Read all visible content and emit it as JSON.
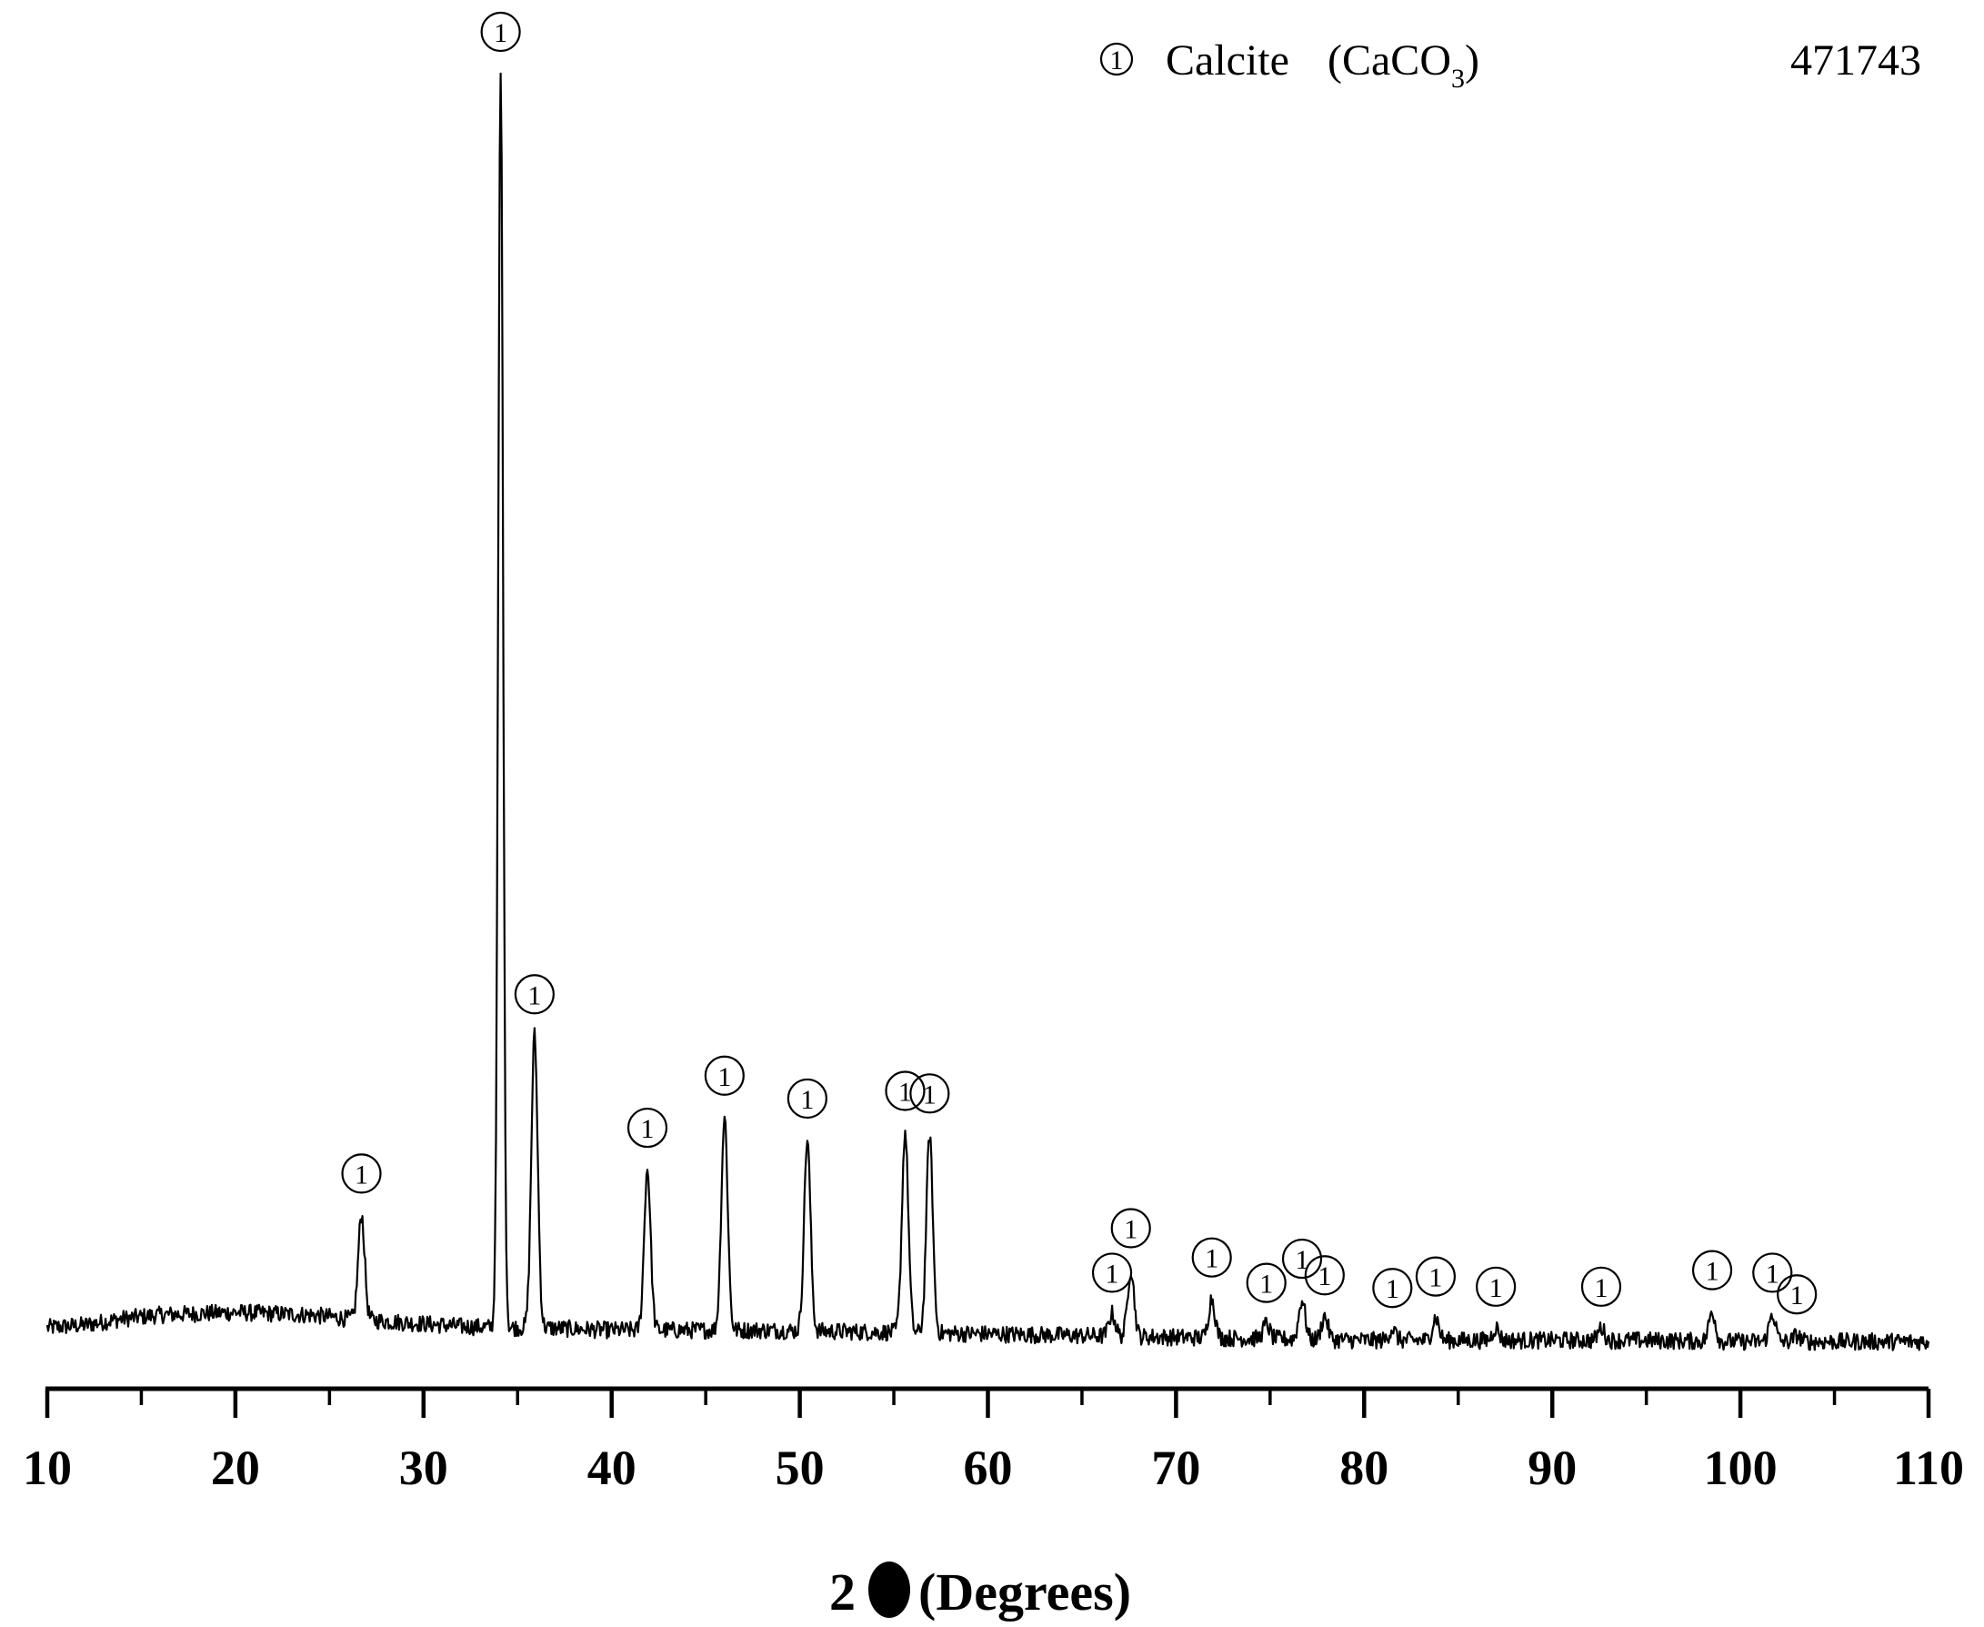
{
  "chart_data": {
    "type": "line",
    "title": "",
    "sample_id": "471743",
    "xlabel": "2θ (Degrees)",
    "xlabel_prefix": "2",
    "xlabel_suffix": "(Degrees)",
    "ylabel": "",
    "xlim": [
      10,
      110
    ],
    "x_ticks": [
      10,
      20,
      30,
      40,
      50,
      60,
      70,
      80,
      90,
      100,
      110
    ],
    "x_tick_labels": [
      "10",
      "20",
      "30",
      "40",
      "50",
      "60",
      "70",
      "80",
      "90",
      "100",
      "110"
    ],
    "y_axis_shown": false,
    "grid": false,
    "legend": {
      "placement": "top-right",
      "marker": "1",
      "label": "Calcite",
      "formula_main": "(CaCO",
      "formula_sub": "3",
      "formula_close": ")"
    },
    "line_color": "#000000",
    "baseline": [
      [
        10,
        1.3
      ],
      [
        12,
        1.5
      ],
      [
        14,
        2.0
      ],
      [
        16,
        2.3
      ],
      [
        18,
        2.4
      ],
      [
        20,
        2.5
      ],
      [
        22,
        2.4
      ],
      [
        24,
        2.3
      ],
      [
        26,
        2.0
      ],
      [
        28,
        1.8
      ],
      [
        30,
        1.6
      ],
      [
        32,
        1.4
      ],
      [
        34,
        1.3
      ],
      [
        36,
        1.3
      ],
      [
        38,
        1.2
      ],
      [
        40,
        1.1
      ],
      [
        44,
        1.1
      ],
      [
        48,
        1.1
      ],
      [
        52,
        1.0
      ],
      [
        56,
        0.9
      ],
      [
        60,
        0.8
      ],
      [
        64,
        0.7
      ],
      [
        68,
        0.6
      ],
      [
        72,
        0.5
      ],
      [
        76,
        0.4
      ],
      [
        80,
        0.3
      ],
      [
        85,
        0.3
      ],
      [
        90,
        0.3
      ],
      [
        95,
        0.3
      ],
      [
        100,
        0.2
      ],
      [
        105,
        0.2
      ],
      [
        110,
        0.2
      ]
    ],
    "peaks": [
      {
        "two_theta": 26.7,
        "intensity": 10.2,
        "label": "1"
      },
      {
        "two_theta": 34.1,
        "intensity": 100.0,
        "label": "1"
      },
      {
        "two_theta": 35.9,
        "intensity": 24.3,
        "label": "1"
      },
      {
        "two_theta": 41.9,
        "intensity": 13.8,
        "label": "1"
      },
      {
        "two_theta": 46.0,
        "intensity": 17.9,
        "label": "1"
      },
      {
        "two_theta": 50.4,
        "intensity": 16.1,
        "label": "1"
      },
      {
        "two_theta": 55.6,
        "intensity": 16.7,
        "label": "1"
      },
      {
        "two_theta": 56.9,
        "intensity": 16.5,
        "label": "1"
      },
      {
        "two_theta": 66.6,
        "intensity": 2.4,
        "label": "1"
      },
      {
        "two_theta": 67.6,
        "intensity": 5.9,
        "label": "1"
      },
      {
        "two_theta": 71.9,
        "intensity": 3.6,
        "label": "1"
      },
      {
        "two_theta": 74.8,
        "intensity": 1.6,
        "label": "1"
      },
      {
        "two_theta": 76.7,
        "intensity": 3.5,
        "label": "1"
      },
      {
        "two_theta": 77.9,
        "intensity": 2.2,
        "label": "1"
      },
      {
        "two_theta": 81.5,
        "intensity": 1.2,
        "label": "1"
      },
      {
        "two_theta": 83.8,
        "intensity": 2.1,
        "label": "1"
      },
      {
        "two_theta": 87.0,
        "intensity": 1.3,
        "label": "1"
      },
      {
        "two_theta": 92.6,
        "intensity": 1.3,
        "label": "1"
      },
      {
        "two_theta": 98.5,
        "intensity": 2.6,
        "label": "1"
      },
      {
        "two_theta": 101.7,
        "intensity": 2.4,
        "label": "1"
      },
      {
        "two_theta": 103.0,
        "intensity": 0.7,
        "label": "1"
      }
    ]
  }
}
